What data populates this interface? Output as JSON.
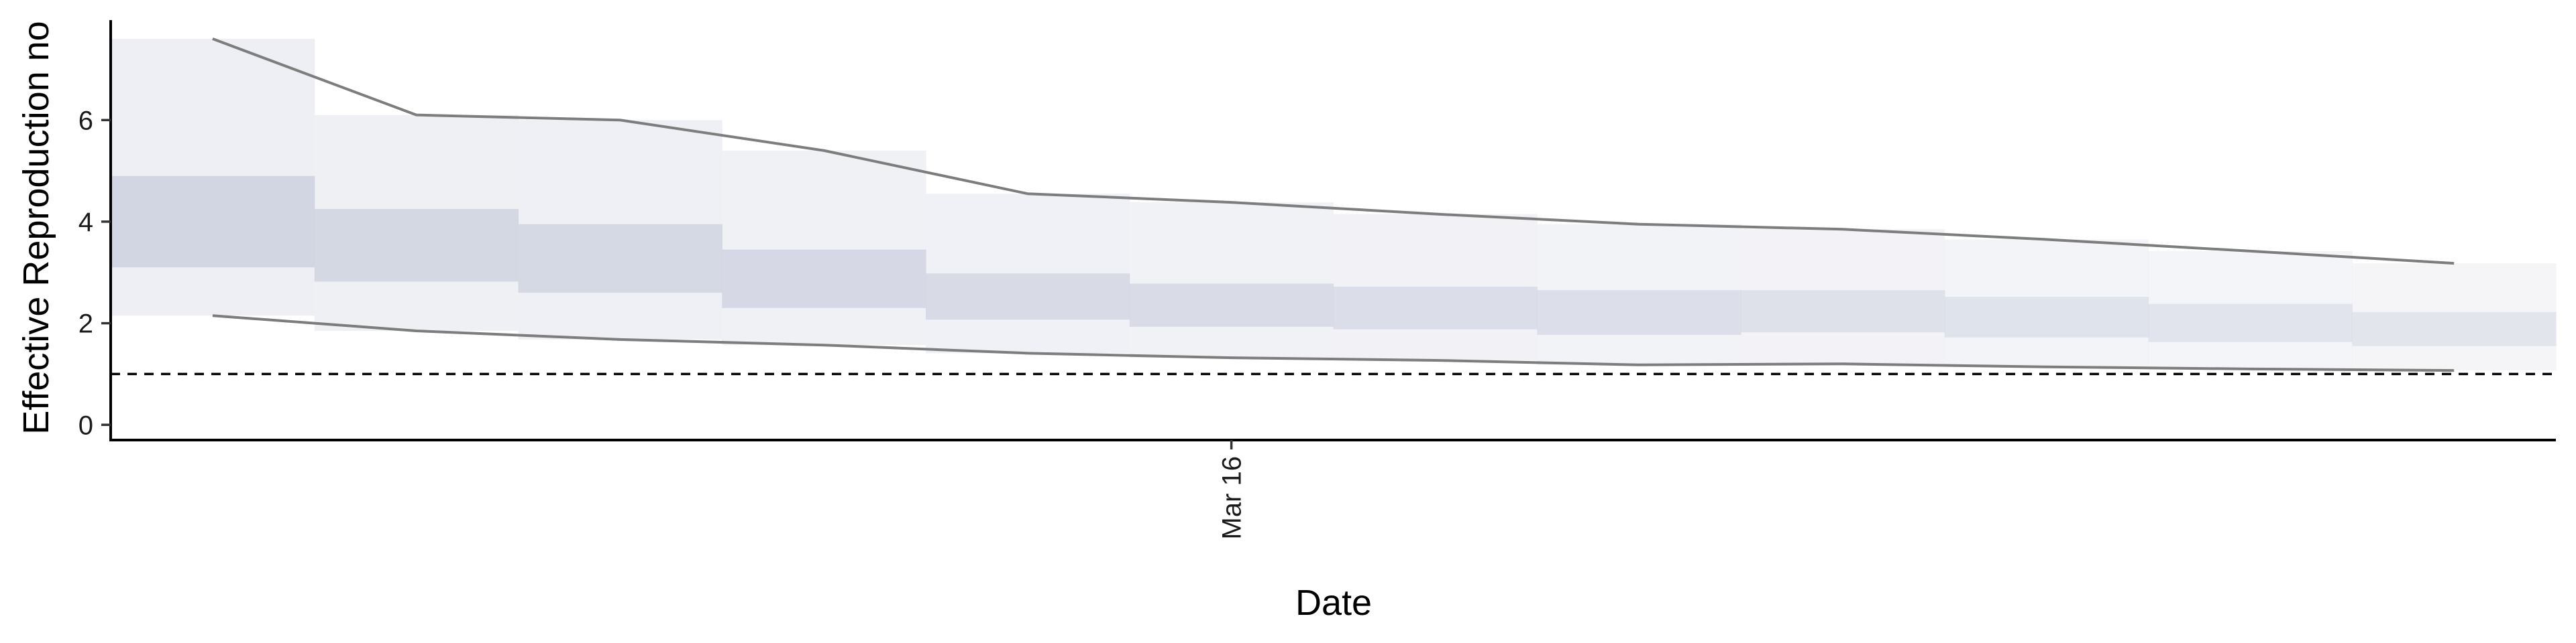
{
  "chart_data": {
    "type": "area",
    "title": "",
    "xlabel": "Date",
    "ylabel": "Effective Reproduction no",
    "x_tick_labels": [
      "Mar 16"
    ],
    "x_tick_dates": [
      "2020-03-16"
    ],
    "x_dates": [
      "2020-03-11",
      "2020-03-12",
      "2020-03-13",
      "2020-03-14",
      "2020-03-15",
      "2020-03-16",
      "2020-03-17",
      "2020-03-18",
      "2020-03-19",
      "2020-03-20",
      "2020-03-21",
      "2020-03-22"
    ],
    "xlim": [
      "2020-03-10T12:00",
      "2020-03-22T12:00"
    ],
    "y_ticks": [
      0,
      2,
      4,
      6
    ],
    "y_tick_labels": [
      "0",
      "2",
      "4",
      "6"
    ],
    "ylim": [
      -0.3,
      8.1
    ],
    "reference_line": {
      "y": 1,
      "style": "dashed"
    },
    "grid": false,
    "series": [
      {
        "band": "90%",
        "lower": [
          2.15,
          1.85,
          1.68,
          1.57,
          1.41,
          1.32,
          1.27,
          1.18,
          1.2,
          1.14,
          1.1,
          1.07
        ],
        "upper": [
          7.6,
          6.1,
          6.0,
          5.4,
          4.55,
          4.38,
          4.15,
          3.95,
          3.85,
          3.65,
          3.42,
          3.18
        ]
      },
      {
        "band": "50%",
        "lower": [
          3.1,
          2.82,
          2.6,
          2.3,
          2.07,
          1.93,
          1.88,
          1.77,
          1.82,
          1.72,
          1.63,
          1.55
        ],
        "upper": [
          4.9,
          4.25,
          3.95,
          3.45,
          2.98,
          2.78,
          2.72,
          2.65,
          2.65,
          2.52,
          2.38,
          2.22
        ]
      }
    ],
    "colors": {
      "outer_band": "#eeeff4",
      "inner_band": "#d2d6e2",
      "outline": "#7d7d7d",
      "axis": "#000000"
    }
  }
}
